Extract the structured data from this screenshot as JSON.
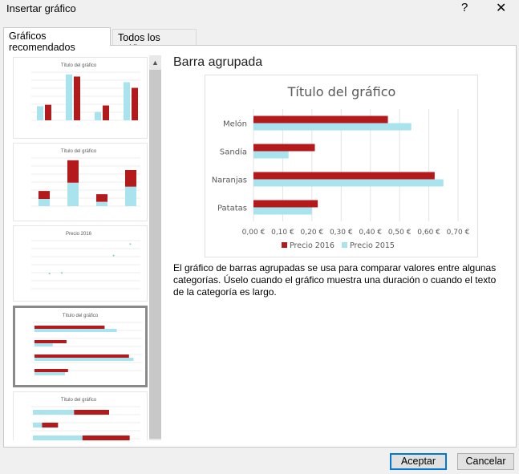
{
  "dialog": {
    "title": "Insertar gráfico",
    "help": "?",
    "close": "✕"
  },
  "tabs": [
    {
      "label": "Gráficos recomendados",
      "selected": true
    },
    {
      "label": "Todos los gráficos",
      "selected": false
    }
  ],
  "preview": {
    "heading": "Barra agrupada",
    "description": "El gráfico de barras agrupadas se usa para comparar valores entre algunas categorías. Úselo cuando el gráfico muestra una duración o cuando el texto de la categoría es largo."
  },
  "thumbnails": [
    {
      "title": "Título del gráfico",
      "kind": "column"
    },
    {
      "title": "Título del gráfico",
      "kind": "stacked"
    },
    {
      "title": "Precio 2016",
      "kind": "scatter"
    },
    {
      "title": "Título del gráfico",
      "kind": "bar",
      "selected": true
    },
    {
      "title": "Título del gráfico",
      "kind": "stackedbar"
    }
  ],
  "buttons": {
    "ok": "Aceptar",
    "cancel": "Cancelar"
  },
  "colors": {
    "s2016": "#b41a1c",
    "s2015": "#a9e4ee"
  },
  "chart_data": {
    "type": "bar",
    "title": "Título del gráfico",
    "categories": [
      "Patatas",
      "Naranjas",
      "Sandía",
      "Melón"
    ],
    "series": [
      {
        "name": "Precio 2016",
        "values": [
          0.22,
          0.62,
          0.21,
          0.46
        ]
      },
      {
        "name": "Precio 2015",
        "values": [
          0.2,
          0.65,
          0.12,
          0.54
        ]
      }
    ],
    "xlim": [
      0,
      0.7
    ],
    "ticks": [
      "0,00 €",
      "0,10 €",
      "0,20 €",
      "0,30 €",
      "0,40 €",
      "0,50 €",
      "0,60 €",
      "0,70 €"
    ],
    "legend": "bottom",
    "grid": true
  }
}
